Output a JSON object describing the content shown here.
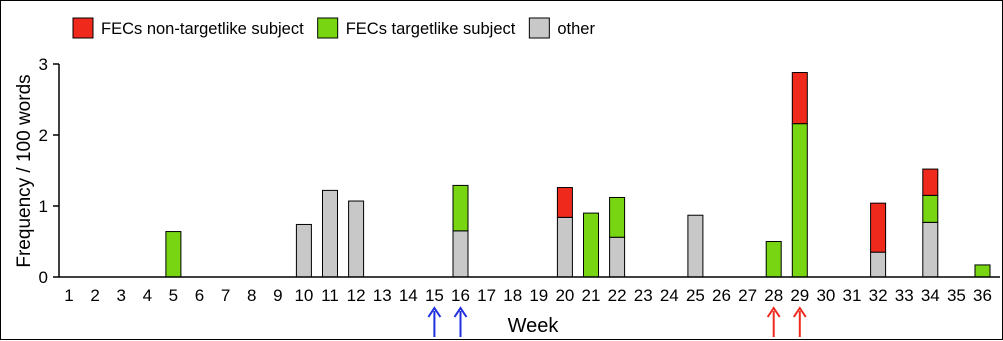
{
  "chart_data": {
    "type": "bar",
    "stacked": true,
    "xlabel": "Week",
    "ylabel": "Frequency / 100 words",
    "ylim": [
      0,
      3
    ],
    "yticks": [
      "0",
      "1",
      "2",
      "3"
    ],
    "categories": [
      "1",
      "2",
      "3",
      "4",
      "5",
      "6",
      "7",
      "8",
      "9",
      "10",
      "11",
      "12",
      "13",
      "14",
      "15",
      "16",
      "17",
      "18",
      "19",
      "20",
      "21",
      "22",
      "23",
      "24",
      "25",
      "26",
      "27",
      "28",
      "29",
      "30",
      "31",
      "32",
      "33",
      "34",
      "35",
      "36"
    ],
    "series": [
      {
        "name": "other",
        "color": "#c8c8c8",
        "values": [
          0,
          0,
          0,
          0,
          0,
          0,
          0,
          0,
          0,
          0.74,
          1.22,
          1.07,
          0,
          0,
          0,
          0.65,
          0,
          0,
          0,
          0.84,
          0,
          0.56,
          0,
          0,
          0.87,
          0,
          0,
          0,
          0,
          0,
          0,
          0.35,
          0,
          0.77,
          0,
          0
        ]
      },
      {
        "name": "FECs targetlike subject",
        "color": "#77d611",
        "values": [
          0,
          0,
          0,
          0,
          0.64,
          0,
          0,
          0,
          0,
          0,
          0,
          0,
          0,
          0,
          0,
          0.64,
          0,
          0,
          0,
          0,
          0.9,
          0.56,
          0,
          0,
          0,
          0,
          0,
          0.5,
          2.16,
          0,
          0,
          0,
          0,
          0.38,
          0,
          0.17
        ]
      },
      {
        "name": "FECs non-targetlike subject",
        "color": "#f0291d",
        "values": [
          0,
          0,
          0,
          0,
          0,
          0,
          0,
          0,
          0,
          0,
          0,
          0,
          0,
          0,
          0,
          0,
          0,
          0,
          0,
          0.42,
          0,
          0,
          0,
          0,
          0,
          0,
          0,
          0,
          0.72,
          0,
          0,
          0.69,
          0,
          0.37,
          0,
          0
        ]
      }
    ],
    "legend": {
      "position": "top-left",
      "entries": [
        "FECs non-targetlike subject",
        "FECs targetlike subject",
        "other"
      ]
    },
    "annotations": {
      "arrows": [
        {
          "week": "15",
          "color": "#1f2ee0"
        },
        {
          "week": "16",
          "color": "#1f2ee0"
        },
        {
          "week": "28",
          "color": "#ee2a1f"
        },
        {
          "week": "29",
          "color": "#ee2a1f"
        }
      ]
    },
    "grid": false
  }
}
